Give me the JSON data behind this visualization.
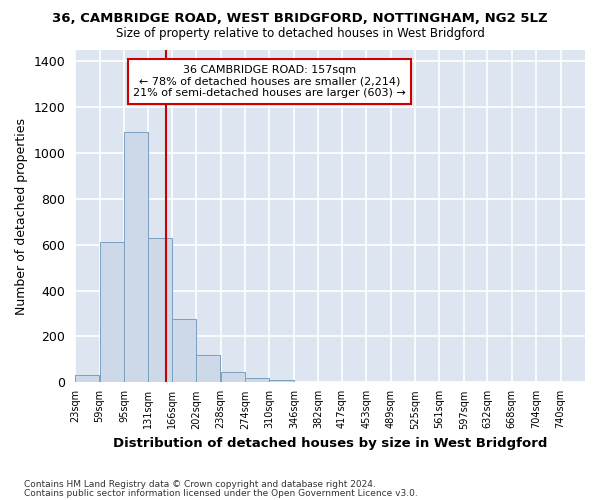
{
  "title": "36, CAMBRIDGE ROAD, WEST BRIDGFORD, NOTTINGHAM, NG2 5LZ",
  "subtitle": "Size of property relative to detached houses in West Bridgford",
  "xlabel": "Distribution of detached houses by size in West Bridgford",
  "ylabel": "Number of detached properties",
  "footnote1": "Contains HM Land Registry data © Crown copyright and database right 2024.",
  "footnote2": "Contains public sector information licensed under the Open Government Licence v3.0.",
  "bar_color": "#cdd9e8",
  "bar_edge_color": "#7aa0c0",
  "background_color": "#dde6f0",
  "grid_color": "#ffffff",
  "fig_background": "#ffffff",
  "annotation_box_color": "#ffffff",
  "annotation_box_edge": "#cc0000",
  "vline_color": "#cc0000",
  "property_sqm": 157,
  "annotation_text_line1": "36 CAMBRIDGE ROAD: 157sqm",
  "annotation_text_line2": "← 78% of detached houses are smaller (2,214)",
  "annotation_text_line3": "21% of semi-detached houses are larger (603) →",
  "bins": [
    23,
    59,
    95,
    131,
    166,
    202,
    238,
    274,
    310,
    346,
    382,
    417,
    453,
    489,
    525,
    561,
    597,
    632,
    668,
    704,
    740
  ],
  "counts": [
    30,
    610,
    1090,
    630,
    275,
    120,
    45,
    20,
    10,
    3,
    1,
    0,
    0,
    0,
    0,
    0,
    0,
    0,
    0,
    0
  ],
  "ylim": [
    0,
    1450
  ],
  "yticks": [
    0,
    200,
    400,
    600,
    800,
    1000,
    1200,
    1400
  ]
}
